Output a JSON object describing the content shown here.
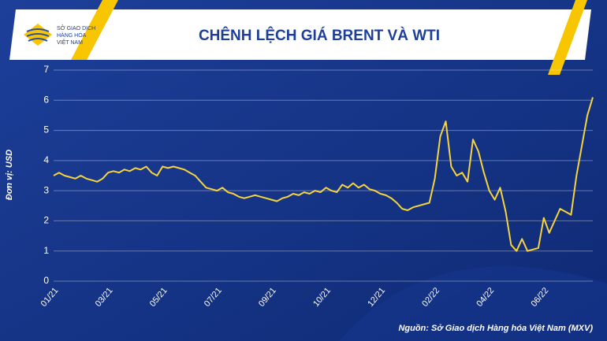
{
  "logo": {
    "lines": [
      "SỞ GIAO DỊCH",
      "HÀNG HÓA",
      "VIỆT NAM"
    ]
  },
  "chart_data": {
    "type": "line",
    "title": "CHÊNH LỆCH GIÁ BRENT VÀ WTI",
    "y_label": "Đơn vị: USD",
    "source": "Nguồn: Sở Giao dịch Hàng hóa Việt Nam (MXV)",
    "categories": [
      "01/21",
      null,
      null,
      null,
      null,
      null,
      null,
      null,
      null,
      null,
      "03/21",
      null,
      null,
      null,
      null,
      null,
      null,
      null,
      null,
      null,
      "05/21",
      null,
      null,
      null,
      null,
      null,
      null,
      null,
      null,
      null,
      "07/21",
      null,
      null,
      null,
      null,
      null,
      null,
      null,
      null,
      null,
      "09/21",
      null,
      null,
      null,
      null,
      null,
      null,
      null,
      null,
      null,
      "10/21",
      null,
      null,
      null,
      null,
      null,
      null,
      null,
      null,
      null,
      "12/21",
      null,
      null,
      null,
      null,
      null,
      null,
      null,
      null,
      null,
      "02/22",
      null,
      null,
      null,
      null,
      null,
      null,
      null,
      null,
      null,
      "04/22",
      null,
      null,
      null,
      null,
      null,
      null,
      null,
      null,
      null,
      "06/22",
      null,
      null,
      null,
      null,
      null,
      null,
      null,
      null,
      null
    ],
    "series": [
      {
        "color": "#f7d43c",
        "values": [
          3.5,
          3.6,
          3.5,
          3.45,
          3.4,
          3.5,
          3.4,
          3.35,
          3.3,
          3.4,
          3.6,
          3.65,
          3.6,
          3.7,
          3.65,
          3.75,
          3.7,
          3.8,
          3.6,
          3.5,
          3.8,
          3.75,
          3.8,
          3.75,
          3.7,
          3.6,
          3.5,
          3.3,
          3.1,
          3.05,
          3.0,
          3.1,
          2.95,
          2.9,
          2.8,
          2.75,
          2.8,
          2.85,
          2.8,
          2.75,
          2.7,
          2.65,
          2.75,
          2.8,
          2.9,
          2.85,
          2.95,
          2.9,
          3.0,
          2.95,
          3.1,
          3.0,
          2.95,
          3.2,
          3.1,
          3.25,
          3.1,
          3.2,
          3.05,
          3.0,
          2.9,
          2.85,
          2.75,
          2.6,
          2.4,
          2.35,
          2.45,
          2.5,
          2.55,
          2.6,
          3.4,
          4.8,
          5.3,
          3.8,
          3.5,
          3.6,
          3.3,
          4.7,
          4.3,
          3.6,
          3.0,
          2.7,
          3.1,
          2.3,
          1.2,
          1.0,
          1.4,
          1.0,
          1.05,
          1.1,
          2.1,
          1.6,
          2.0,
          2.4,
          2.3,
          2.2,
          3.5,
          4.5,
          5.5,
          6.1
        ]
      }
    ],
    "ylim": [
      0,
      7
    ],
    "yticks": [
      0,
      1,
      2,
      3,
      4,
      5,
      6,
      7
    ],
    "grid": true
  }
}
